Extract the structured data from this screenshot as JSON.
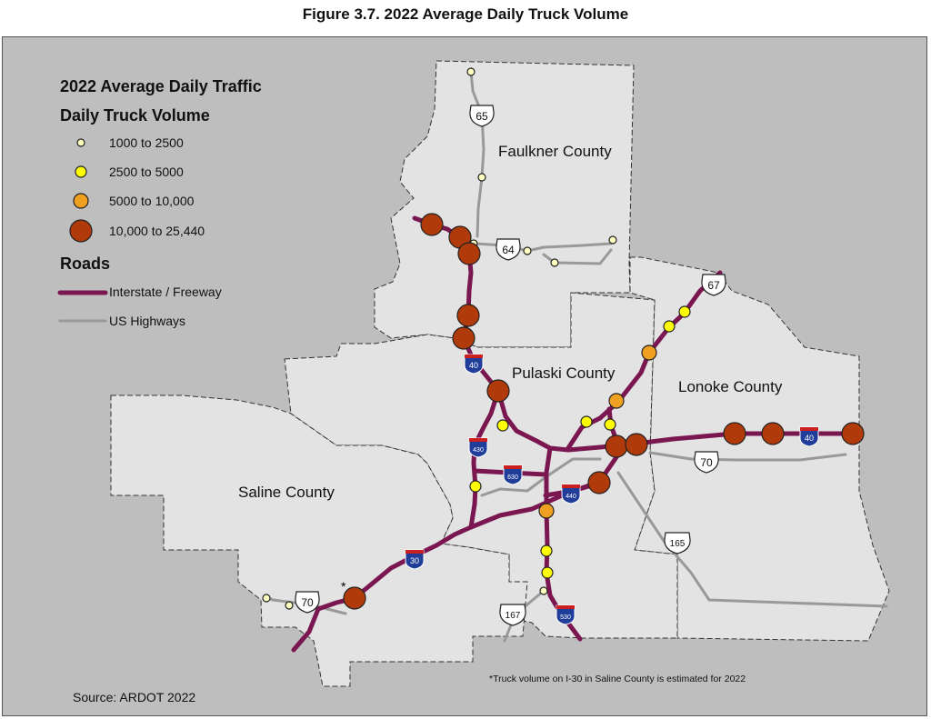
{
  "figure_title": "Figure 3.7. 2022 Average Daily Truck Volume",
  "legend": {
    "title": "2022 Average Daily Traffic",
    "subtitle": "Daily Truck Volume",
    "volume_classes": [
      {
        "label": "1000 to 2500",
        "color": "#ffffc0"
      },
      {
        "label": "2500  to 5000",
        "color": "#ffff00"
      },
      {
        "label": "5000 to 10,000",
        "color": "#f0a020"
      },
      {
        "label": "10,000 to 25,440",
        "color": "#b03a0a"
      }
    ],
    "roads_title": "Roads",
    "roads": [
      {
        "label": "Interstate / Freeway",
        "color": "#7a1650"
      },
      {
        "label": "US Highways",
        "color": "#999999"
      }
    ]
  },
  "counties": {
    "faulkner": "Faulkner County",
    "pulaski": "Pulaski County",
    "lonoke": "Lonoke County",
    "saline": "Saline County"
  },
  "interstate_shields": {
    "i40_west": "40",
    "i40_east": "40",
    "i430": "430",
    "i630": "630",
    "i440": "440",
    "i30": "30",
    "i530": "530"
  },
  "us_shields": {
    "us65": "65",
    "us64": "64",
    "us67": "67",
    "us70_east": "70",
    "us70_west": "70",
    "us165": "165",
    "us167": "167"
  },
  "estimate_marker": "*",
  "source": "Source: ARDOT 2022",
  "footnote": "*Truck volume on I-30 in Saline County is estimated for 2022",
  "colors": {
    "background": "#bebebe",
    "county_fill": "#e3e3e3",
    "interstate": "#7a1650",
    "us_highway": "#999999"
  }
}
